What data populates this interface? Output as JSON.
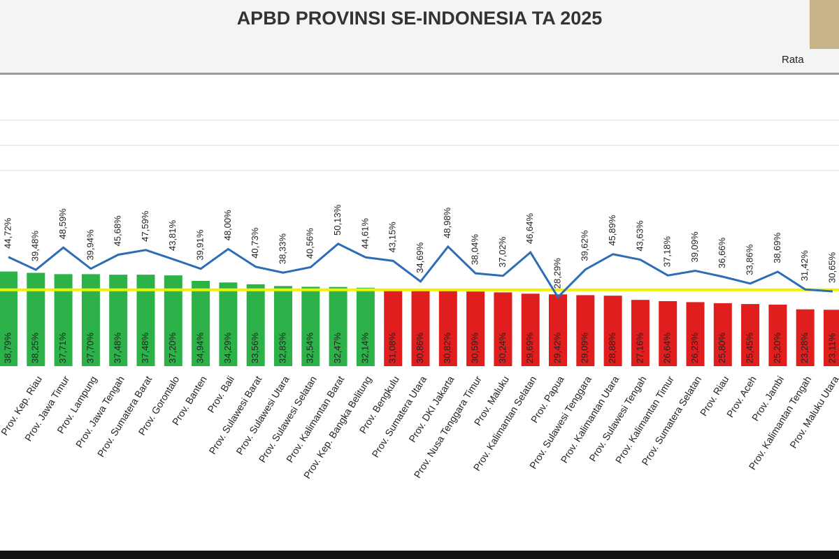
{
  "chart_data": {
    "type": "bar",
    "title": "APBD PROVINSI SE-INDONESIA TA 2025",
    "legend_text": "Rata",
    "categories": [
      null,
      "Prov. Kep. Riau",
      "Prov. Jawa Timur",
      "Prov. Lampung",
      "Prov. Jawa Tengah",
      "Prov. Sumatera Barat",
      "Prov. Gorontalo",
      "Prov. Banten",
      "Prov. Bali",
      "Prov. Sulawesi Barat",
      "Prov. Sulawesi Utara",
      "Prov. Sulawesi Selatan",
      "Prov. Kalimantan Barat",
      "Prov. Kep. Bangka Belitung",
      "Prov. Bengkulu",
      "Prov. Sumatera Utara",
      "Prov. DKI Jakarta",
      "Prov. Nusa Tenggara Timur",
      "Prov. Maluku",
      "Prov. Kalimantan Selatan",
      "Prov. Papua",
      "Prov. Sulawesi Tenggara",
      "Prov. Kalimantan Utara",
      "Prov. Sulawesi Tengah",
      "Prov. Kalimantan Timur",
      "Prov. Sumatera Selatan",
      "Prov. Riau",
      "Prov. Aceh",
      "Prov. Jambi",
      "Prov. Kalimantan Tengah",
      "Prov. Maluku Utara"
    ],
    "ylim": [
      0,
      120
    ],
    "average_line": {
      "value": 31.3,
      "color": "#f2f200"
    },
    "series": [
      {
        "type": "bar",
        "colors": [
          "#2db24a",
          "#2db24a",
          "#2db24a",
          "#2db24a",
          "#2db24a",
          "#2db24a",
          "#2db24a",
          "#2db24a",
          "#2db24a",
          "#2db24a",
          "#2db24a",
          "#2db24a",
          "#2db24a",
          "#2db24a",
          "#e01e1e",
          "#e01e1e",
          "#e01e1e",
          "#e01e1e",
          "#e01e1e",
          "#e01e1e",
          "#e01e1e",
          "#e01e1e",
          "#e01e1e",
          "#e01e1e",
          "#e01e1e",
          "#e01e1e",
          "#e01e1e",
          "#e01e1e",
          "#e01e1e",
          "#e01e1e",
          "#e01e1e"
        ],
        "values": [
          38.79,
          38.25,
          37.71,
          37.7,
          37.48,
          37.48,
          37.2,
          34.94,
          34.29,
          33.56,
          32.83,
          32.54,
          32.47,
          32.14,
          31.08,
          30.86,
          30.82,
          30.59,
          30.24,
          29.69,
          29.42,
          29.09,
          28.88,
          27.16,
          26.64,
          26.23,
          25.8,
          25.45,
          25.2,
          23.28,
          23.11
        ],
        "value_labels": [
          "38,79%",
          "38,25%",
          "37,71%",
          "37,70%",
          "37,48%",
          "37,48%",
          "37,20%",
          "34,94%",
          "34,29%",
          "33,56%",
          "32,83%",
          "32,54%",
          "32,47%",
          "32,14%",
          "31,08%",
          "30,86%",
          "30,82%",
          "30,59%",
          "30,24%",
          "29,69%",
          "29,42%",
          "29,09%",
          "28,88%",
          "27,16%",
          "26,64%",
          "26,23%",
          "25,80%",
          "25,45%",
          "25,20%",
          "23,28%",
          "23,11%"
        ]
      },
      {
        "type": "line",
        "color": "#2c6db5",
        "values": [
          44.72,
          39.48,
          48.59,
          39.94,
          45.68,
          47.59,
          43.81,
          39.91,
          48.0,
          40.73,
          38.33,
          40.56,
          50.13,
          44.61,
          43.15,
          34.69,
          48.98,
          38.04,
          37.02,
          46.64,
          28.29,
          39.62,
          45.89,
          43.63,
          37.18,
          39.09,
          36.66,
          33.86,
          38.69,
          31.42,
          30.65
        ],
        "value_labels": [
          "44,72%",
          "39,48%",
          "48,59%",
          "39,94%",
          "45,68%",
          "47,59%",
          "43,81%",
          "39,91%",
          "48,00%",
          "40,73%",
          "38,33%",
          "40,56%",
          "50,13%",
          "44,61%",
          "43,15%",
          "34,69%",
          "48,98%",
          "38,04%",
          "37,02%",
          "46,64%",
          "28,29%",
          "39,62%",
          "45,89%",
          "43,63%",
          "37,18%",
          "39,09%",
          "36,66%",
          "33,86%",
          "38,69%",
          "31,42%",
          "30,65%"
        ]
      }
    ]
  }
}
